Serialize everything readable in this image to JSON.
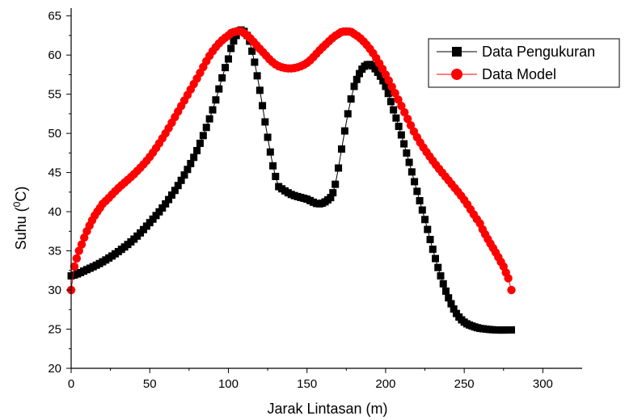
{
  "chart_data": {
    "type": "scatter",
    "xlabel": "Jarak Lintasan (m)",
    "ylabel_main": "Suhu (",
    "ylabel_sup": "0",
    "ylabel_end": "C)",
    "xlim": [
      0,
      325
    ],
    "ylim": [
      20,
      66
    ],
    "x_ticks": [
      "0",
      "50",
      "100",
      "150",
      "200",
      "250",
      "300"
    ],
    "y_ticks": [
      "20",
      "25",
      "30",
      "35",
      "40",
      "45",
      "50",
      "55",
      "60",
      "65"
    ],
    "legend_position": "top-right",
    "series": [
      {
        "name": "Data Pengukuran",
        "color": "#000000",
        "marker": "square",
        "points": [
          [
            0,
            31.8
          ],
          [
            10,
            32.6
          ],
          [
            20,
            33.6
          ],
          [
            30,
            34.9
          ],
          [
            40,
            36.5
          ],
          [
            50,
            38.6
          ],
          [
            60,
            41.0
          ],
          [
            70,
            44.0
          ],
          [
            80,
            47.8
          ],
          [
            90,
            53.0
          ],
          [
            100,
            59.5
          ],
          [
            105,
            62.5
          ],
          [
            108,
            63.2
          ],
          [
            112,
            62.5
          ],
          [
            115,
            60.5
          ],
          [
            120,
            55.5
          ],
          [
            125,
            49.5
          ],
          [
            130,
            44.5
          ],
          [
            132,
            43.2
          ],
          [
            140,
            42.2
          ],
          [
            150,
            41.6
          ],
          [
            158,
            41.0
          ],
          [
            165,
            41.8
          ],
          [
            168,
            43.5
          ],
          [
            172,
            48.0
          ],
          [
            176,
            52.5
          ],
          [
            180,
            56.0
          ],
          [
            185,
            58.2
          ],
          [
            190,
            58.8
          ],
          [
            195,
            57.8
          ],
          [
            200,
            56.0
          ],
          [
            205,
            53.0
          ],
          [
            210,
            49.8
          ],
          [
            215,
            46.3
          ],
          [
            220,
            42.6
          ],
          [
            225,
            39.0
          ],
          [
            230,
            35.2
          ],
          [
            235,
            31.8
          ],
          [
            240,
            29.0
          ],
          [
            245,
            27.0
          ],
          [
            250,
            25.9
          ],
          [
            255,
            25.4
          ],
          [
            260,
            25.1
          ],
          [
            270,
            24.9
          ],
          [
            280,
            24.9
          ]
        ]
      },
      {
        "name": "Data Model",
        "color": "#ff0000",
        "marker": "circle",
        "points": [
          [
            0,
            30.0
          ],
          [
            2,
            33.0
          ],
          [
            5,
            35.0
          ],
          [
            10,
            37.5
          ],
          [
            15,
            39.5
          ],
          [
            20,
            41.0
          ],
          [
            30,
            43.0
          ],
          [
            40,
            44.8
          ],
          [
            50,
            47.0
          ],
          [
            60,
            50.0
          ],
          [
            70,
            53.5
          ],
          [
            80,
            57.0
          ],
          [
            90,
            60.5
          ],
          [
            100,
            62.5
          ],
          [
            105,
            63.0
          ],
          [
            110,
            62.8
          ],
          [
            120,
            60.8
          ],
          [
            130,
            58.8
          ],
          [
            140,
            58.3
          ],
          [
            150,
            59.0
          ],
          [
            160,
            61.0
          ],
          [
            170,
            62.7
          ],
          [
            175,
            63.0
          ],
          [
            180,
            62.7
          ],
          [
            190,
            60.8
          ],
          [
            200,
            57.5
          ],
          [
            210,
            53.5
          ],
          [
            220,
            49.5
          ],
          [
            230,
            46.5
          ],
          [
            240,
            44.0
          ],
          [
            250,
            41.5
          ],
          [
            260,
            38.5
          ],
          [
            265,
            36.5
          ],
          [
            270,
            34.8
          ],
          [
            275,
            33.0
          ],
          [
            278,
            31.5
          ],
          [
            280,
            30.0
          ]
        ]
      }
    ]
  }
}
